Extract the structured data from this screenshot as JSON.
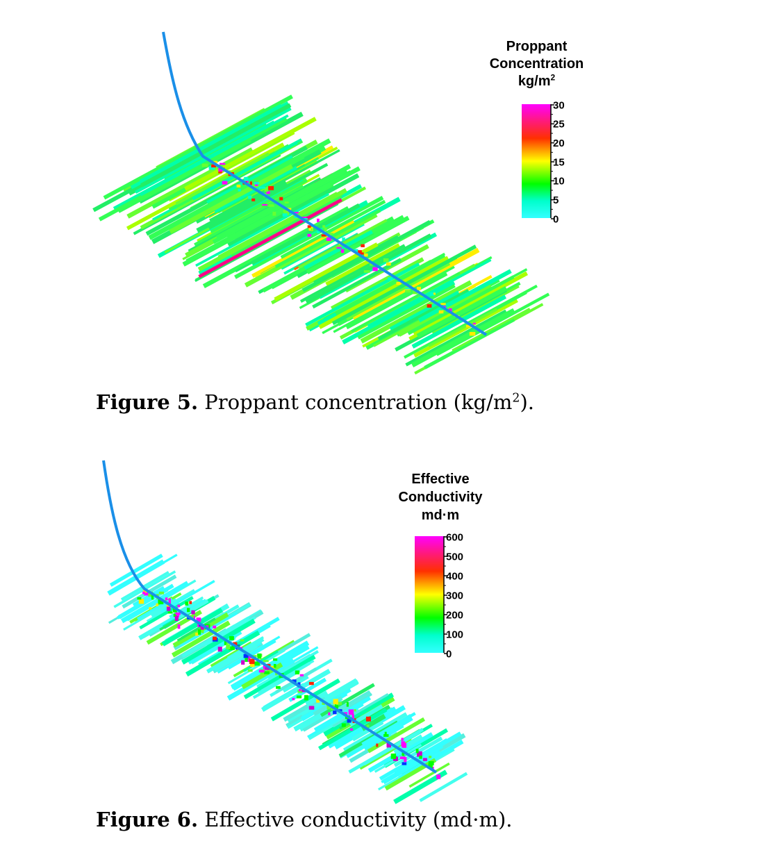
{
  "figure5": {
    "legend": {
      "title_line1": "Proppant",
      "title_line2": "Concentration",
      "title_line3": "kg/m",
      "title_line3_sup": "2",
      "ticks": [
        "30",
        "25",
        "20",
        "15",
        "10",
        "5",
        "0"
      ],
      "colors": [
        "#ff00ff",
        "#ff1a7a",
        "#ff3000",
        "#ff9900",
        "#ffff00",
        "#7fff00",
        "#00ff00",
        "#00ffcc",
        "#33ffff"
      ]
    },
    "caption": {
      "label": "Figure 5.",
      "text": "Proppant concentration (kg/m",
      "sup": "2",
      "suffix": ")."
    },
    "wellbore_color": "#1a8fe8"
  },
  "figure6": {
    "legend": {
      "title_line1": "Effective",
      "title_line2": "Conductivity",
      "title_line3": "md·m",
      "ticks": [
        "600",
        "500",
        "400",
        "300",
        "200",
        "100",
        "0"
      ],
      "colors": [
        "#ff00ff",
        "#ff1a7a",
        "#ff3000",
        "#ff9900",
        "#ffff00",
        "#7fff00",
        "#00ff00",
        "#00ffcc",
        "#33ffff"
      ]
    },
    "caption": {
      "label": "Figure 6.",
      "text": "Effective conductivity (md·m)."
    },
    "wellbore_color": "#1a8fe8"
  }
}
